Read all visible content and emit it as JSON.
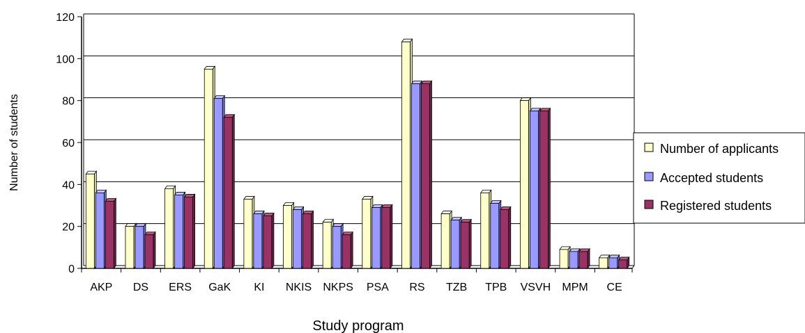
{
  "colors": {
    "series": [
      "#ffffcc",
      "#9999ff",
      "#993366"
    ],
    "side": [
      "#d8d89c",
      "#6f6fd0",
      "#6b2347"
    ],
    "top": [
      "#fffff0",
      "#c2c2ff",
      "#b8557f"
    ],
    "grid": "#000000",
    "background": "#ffffff"
  },
  "chart_data": {
    "type": "bar",
    "title": "",
    "xlabel": "Study program",
    "ylabel": "Number of students",
    "ylim": [
      0,
      120
    ],
    "yticks": [
      "0",
      "20",
      "40",
      "60",
      "80",
      "100",
      "120"
    ],
    "grid": true,
    "legend_position": "right",
    "categories": [
      "AKP",
      "DS",
      "ERS",
      "GaK",
      "KI",
      "NKIS",
      "NKPS",
      "PSA",
      "RS",
      "TZB",
      "TPB",
      "VSVH",
      "MPM",
      "CE"
    ],
    "series": [
      {
        "name": "Number of applicants",
        "values": [
          45,
          20,
          38,
          95,
          33,
          30,
          22,
          33,
          108,
          26,
          36,
          80,
          9,
          5
        ]
      },
      {
        "name": "Accepted students",
        "values": [
          36,
          20,
          35,
          81,
          26,
          28,
          20,
          29,
          88,
          23,
          31,
          75,
          8,
          5
        ]
      },
      {
        "name": "Registered students",
        "values": [
          32,
          16,
          34,
          72,
          25,
          26,
          16,
          29,
          88,
          22,
          28,
          75,
          8,
          4
        ]
      }
    ]
  }
}
